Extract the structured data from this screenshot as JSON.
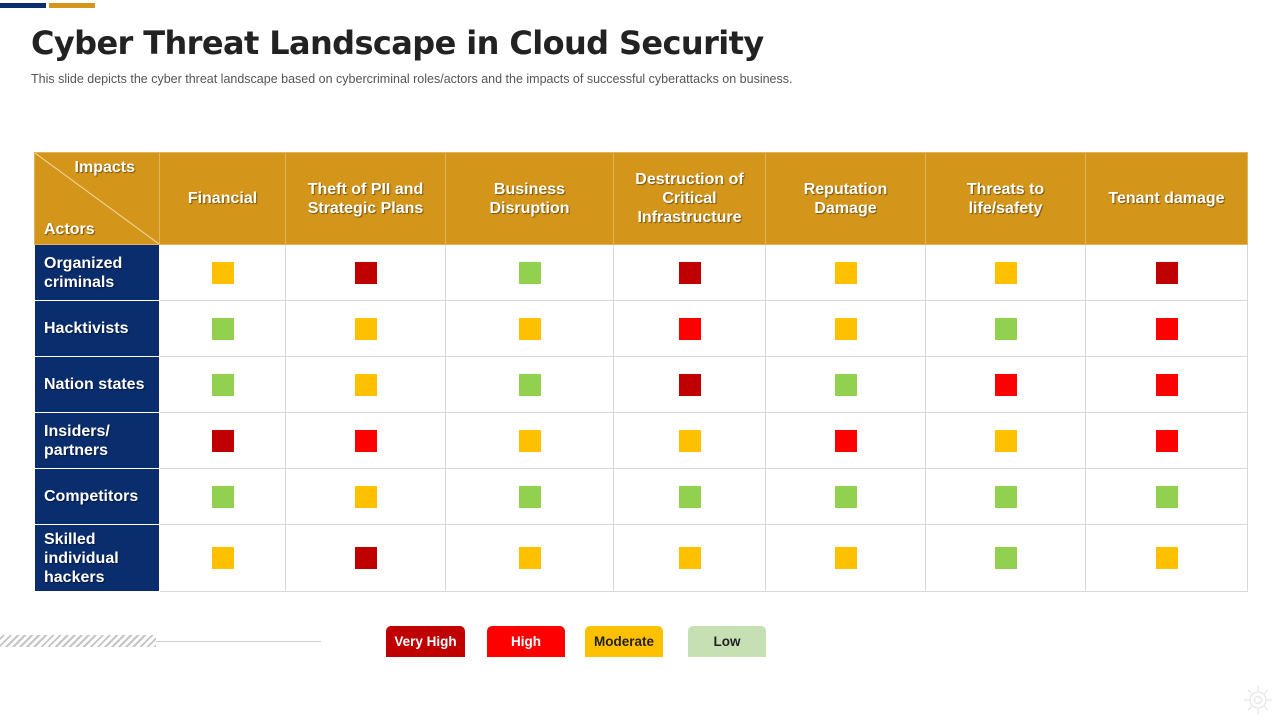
{
  "slide": {
    "title": "Cyber Threat Landscape in Cloud Security",
    "subtitle": "This slide depicts the cyber threat landscape based on cybercriminal roles/actors and the impacts of successful cyberattacks on business."
  },
  "colors": {
    "navy": "#0a2d6e",
    "gold": "#d4961a",
    "very_high": "#c00000",
    "high": "#ff0000",
    "moderate": "#ffc000",
    "low": "#92d050",
    "low_legend": "#c6e0b4"
  },
  "matrix": {
    "corner": {
      "impacts_label": "Impacts",
      "actors_label": "Actors"
    },
    "columns": [
      "Financial",
      "Theft of PII and Strategic Plans",
      "Business Disruption",
      "Destruction of Critical Infrastructure",
      "Reputation Damage",
      "Threats to life/safety",
      "Tenant damage"
    ],
    "rows": [
      {
        "actor": "Organized criminals",
        "levels": [
          "moderate",
          "very_high",
          "low",
          "very_high",
          "moderate",
          "moderate",
          "very_high"
        ]
      },
      {
        "actor": "Hacktivists",
        "levels": [
          "low",
          "moderate",
          "moderate",
          "high",
          "moderate",
          "low",
          "high"
        ]
      },
      {
        "actor": "Nation states",
        "levels": [
          "low",
          "moderate",
          "low",
          "very_high",
          "low",
          "high",
          "high"
        ]
      },
      {
        "actor": "Insiders/ partners",
        "levels": [
          "very_high",
          "high",
          "moderate",
          "moderate",
          "high",
          "moderate",
          "high"
        ]
      },
      {
        "actor": "Competitors",
        "levels": [
          "low",
          "moderate",
          "low",
          "low",
          "low",
          "low",
          "low"
        ]
      },
      {
        "actor": "Skilled individual hackers",
        "levels": [
          "moderate",
          "very_high",
          "moderate",
          "moderate",
          "moderate",
          "low",
          "moderate"
        ]
      }
    ]
  },
  "legend": {
    "very_high": "Very High",
    "high": "High",
    "moderate": "Moderate",
    "low": "Low"
  },
  "icons": {
    "corner_logo": "gear-icon"
  }
}
